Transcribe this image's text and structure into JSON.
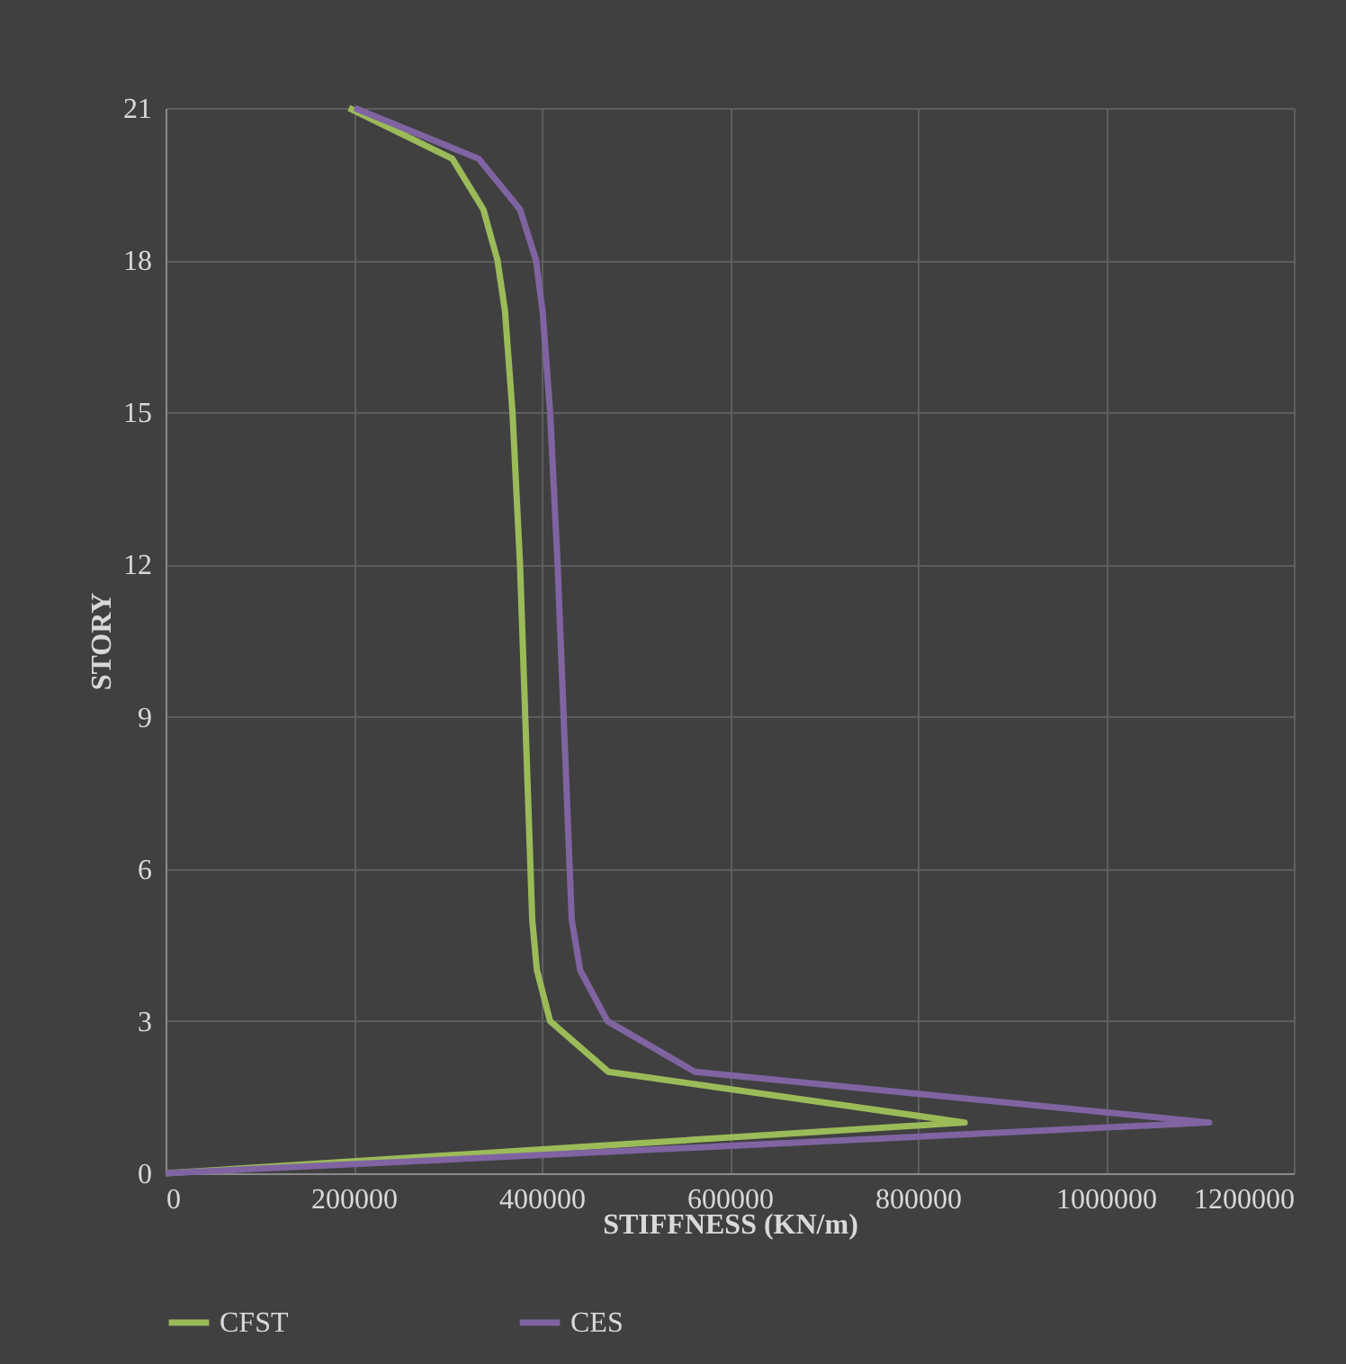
{
  "chart_data": {
    "type": "line",
    "xlabel": "STIFFNESS (KN/m)",
    "ylabel": "STORY",
    "xlim": [
      0,
      1200000
    ],
    "xticks": [
      0,
      200000,
      400000,
      600000,
      800000,
      1000000,
      1200000
    ],
    "ylim": [
      0,
      21
    ],
    "yticks": [
      0,
      3,
      6,
      9,
      12,
      15,
      18,
      21
    ],
    "grid": true,
    "legend": "bottom",
    "line_style": "solid",
    "marker": "none",
    "series": [
      {
        "name": "CFST",
        "color": "#9bbb59",
        "x": [
          0,
          850000,
          471000,
          409000,
          395000,
          390000,
          377000,
          369000,
          361000,
          353000,
          338000,
          305000,
          195000
        ],
        "values": [
          0,
          1,
          2,
          3,
          4,
          5,
          12,
          15,
          17,
          18,
          19,
          20,
          21
        ]
      },
      {
        "name": "CES",
        "color": "#8064a2",
        "x": [
          0,
          1110000,
          563000,
          470000,
          441000,
          432000,
          417000,
          409000,
          401000,
          394000,
          377000,
          333000,
          201000
        ],
        "values": [
          0,
          1,
          2,
          3,
          4,
          5,
          12,
          15,
          17,
          18,
          19,
          20,
          21
        ]
      }
    ]
  }
}
